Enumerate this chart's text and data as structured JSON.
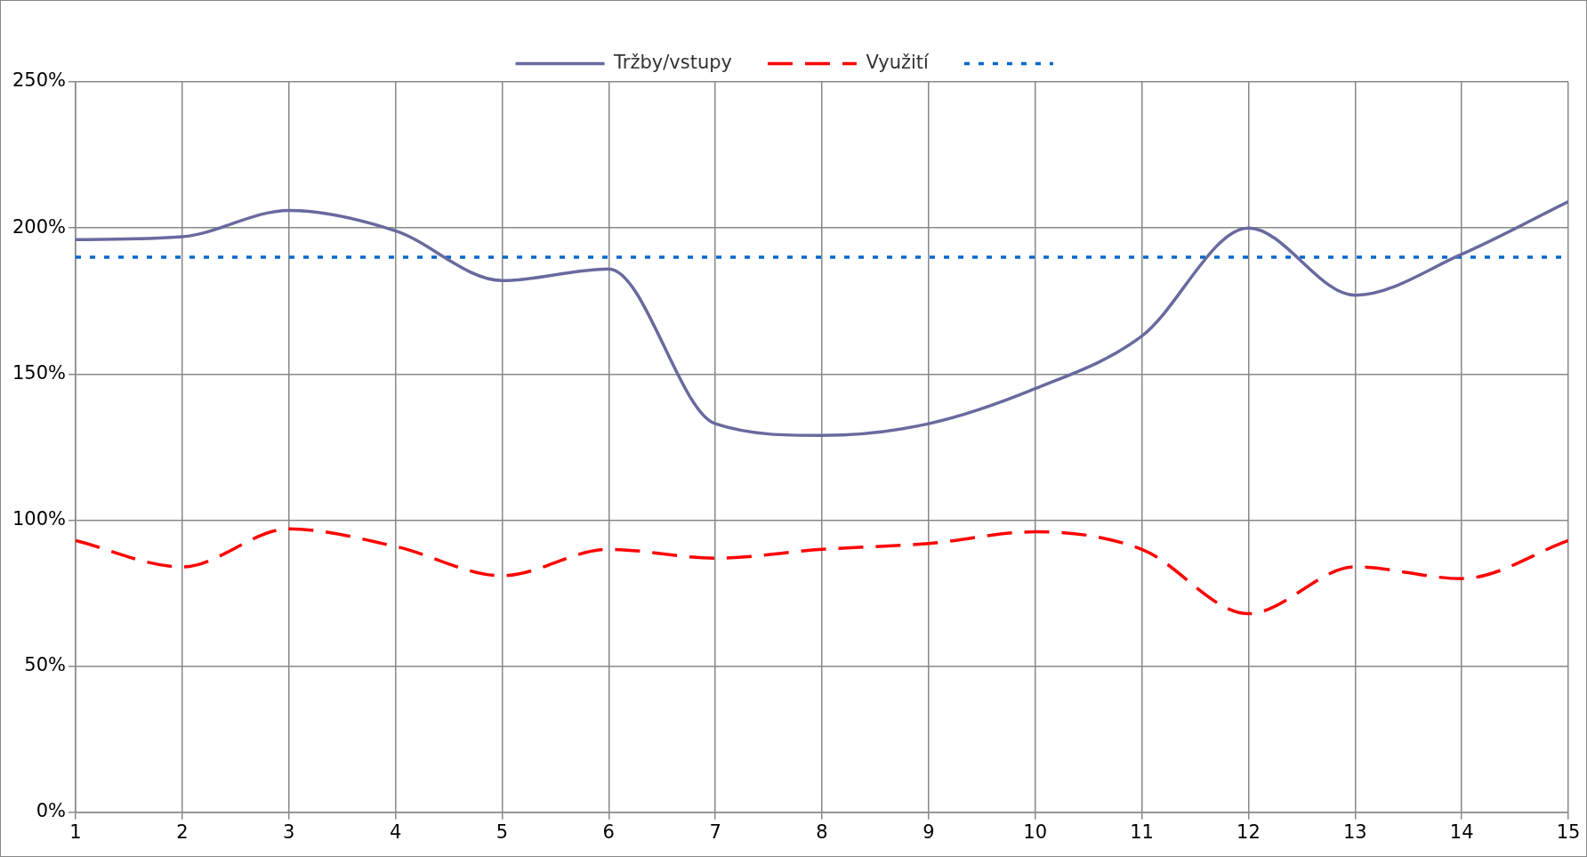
{
  "chart_data": {
    "type": "line",
    "x": [
      1,
      2,
      3,
      4,
      5,
      6,
      7,
      8,
      9,
      10,
      11,
      12,
      13,
      14,
      15
    ],
    "series": [
      {
        "name": "Tržby/vstupy",
        "color": "#686a9e",
        "line_style": "solid",
        "values": [
          196,
          197,
          206,
          199,
          182,
          186,
          133,
          129,
          133,
          145,
          163,
          200,
          177,
          191,
          209
        ]
      },
      {
        "name": "Využití",
        "color": "#ff0000",
        "line_style": "dashed",
        "values": [
          93,
          84,
          97,
          91,
          81,
          90,
          87,
          90,
          92,
          96,
          90,
          68,
          84,
          80,
          93
        ]
      },
      {
        "color": "#0066cc",
        "line_style": "dotted",
        "values": [
          190,
          190,
          190,
          190,
          190,
          190,
          190,
          190,
          190,
          190,
          190,
          190,
          190,
          190,
          190
        ]
      }
    ],
    "xlim": [
      1,
      15
    ],
    "xticks": [
      1,
      2,
      3,
      4,
      5,
      6,
      7,
      8,
      9,
      10,
      11,
      12,
      13,
      14,
      15
    ],
    "ylim": [
      0,
      250
    ],
    "yticks": [
      {
        "value": 0,
        "label": "0%"
      },
      {
        "value": 50,
        "label": "50%"
      },
      {
        "value": 100,
        "label": "100%"
      },
      {
        "value": 150,
        "label": "150%"
      },
      {
        "value": 200,
        "label": "200%"
      },
      {
        "value": 250,
        "label": "250%"
      }
    ],
    "grid": true,
    "legend": "top",
    "marker": "none"
  }
}
